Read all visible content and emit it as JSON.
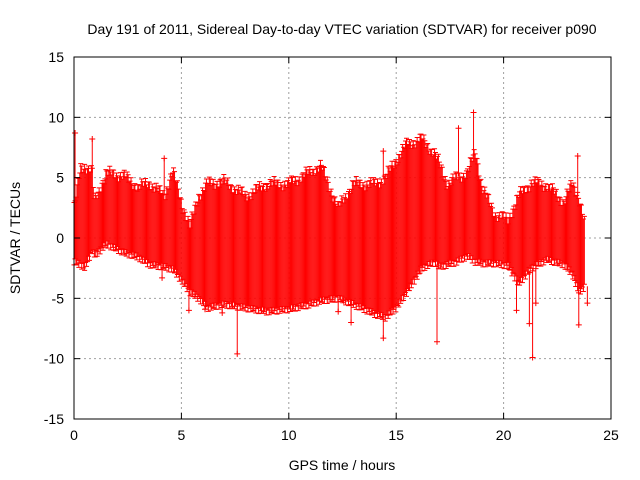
{
  "chart_data": {
    "type": "scatter",
    "title": "Day 191 of 2011, Sidereal Day-to-day VTEC variation (SDTVAR) for receiver p090",
    "xlabel": "GPS time / hours",
    "ylabel": "SDTVAR / TECUs",
    "xlim": [
      0,
      25
    ],
    "ylim": [
      -15,
      15
    ],
    "x_ticks": [
      0,
      5,
      10,
      15,
      20,
      25
    ],
    "y_ticks": [
      -15,
      -10,
      -5,
      0,
      5,
      10,
      15
    ],
    "grid": true,
    "marker": "+",
    "color": "#ff0000",
    "series": [
      {
        "name": "SDTVAR",
        "envelope": {
          "x": [
            0.0,
            0.3,
            0.5,
            0.85,
            0.95,
            1.5,
            2.3,
            3.0,
            3.5,
            4.2,
            4.6,
            5.0,
            5.4,
            5.8,
            6.2,
            7.0,
            8.0,
            9.0,
            10.0,
            11.0,
            11.5,
            12.3,
            13.0,
            14.0,
            14.5,
            15.0,
            15.5,
            16.2,
            16.8,
            17.0,
            17.4,
            17.8,
            18.3,
            18.7,
            19.0,
            19.6,
            20.2,
            20.7,
            21.3,
            22.0,
            22.8,
            23.2,
            23.5,
            23.8
          ],
          "upper": [
            2.5,
            5.8,
            6.0,
            5.5,
            3.0,
            5.4,
            5.2,
            4.2,
            4.6,
            3.5,
            5.6,
            3.0,
            1.0,
            3.5,
            4.5,
            4.7,
            3.5,
            4.5,
            4.5,
            5.5,
            6.0,
            2.5,
            4.5,
            4.5,
            5.0,
            6.5,
            7.8,
            8.2,
            7.0,
            6.2,
            4.5,
            5.0,
            5.4,
            7.2,
            4.2,
            2.0,
            1.5,
            3.5,
            4.6,
            4.4,
            3.0,
            4.5,
            3.5,
            1.0
          ],
          "lower": [
            -2.0,
            -2.2,
            -2.5,
            -1.0,
            -1.5,
            -0.5,
            -1.2,
            -1.6,
            -2.2,
            -2.4,
            -2.6,
            -3.5,
            -4.5,
            -5.0,
            -5.8,
            -5.5,
            -5.8,
            -6.1,
            -5.9,
            -5.5,
            -5.2,
            -5.0,
            -5.5,
            -6.3,
            -6.6,
            -5.8,
            -4.5,
            -2.5,
            -2.0,
            -2.4,
            -2.2,
            -2.0,
            -1.5,
            -2.0,
            -2.1,
            -2.1,
            -2.3,
            -3.8,
            -2.5,
            -1.8,
            -2.2,
            -3.0,
            -4.5,
            -4.0
          ]
        },
        "spikes": [
          {
            "x": 0.05,
            "y": 8.7
          },
          {
            "x": 0.85,
            "y": 8.2
          },
          {
            "x": 4.2,
            "y": 6.6
          },
          {
            "x": 4.1,
            "y": -3.3
          },
          {
            "x": 5.35,
            "y": -6.0
          },
          {
            "x": 6.1,
            "y": -5.9
          },
          {
            "x": 6.9,
            "y": -6.2
          },
          {
            "x": 7.6,
            "y": -9.6
          },
          {
            "x": 12.3,
            "y": -6.1
          },
          {
            "x": 12.55,
            "y": -5.2
          },
          {
            "x": 12.9,
            "y": -7.0
          },
          {
            "x": 14.4,
            "y": 7.2
          },
          {
            "x": 14.4,
            "y": -8.3
          },
          {
            "x": 16.9,
            "y": -8.6
          },
          {
            "x": 17.9,
            "y": 9.1
          },
          {
            "x": 18.6,
            "y": 10.4
          },
          {
            "x": 20.6,
            "y": -6.0
          },
          {
            "x": 21.2,
            "y": -7.1
          },
          {
            "x": 21.35,
            "y": -9.9
          },
          {
            "x": 21.5,
            "y": -5.4
          },
          {
            "x": 23.45,
            "y": 6.8
          },
          {
            "x": 23.5,
            "y": -7.2
          },
          {
            "x": 23.9,
            "y": -5.4
          }
        ]
      }
    ]
  }
}
